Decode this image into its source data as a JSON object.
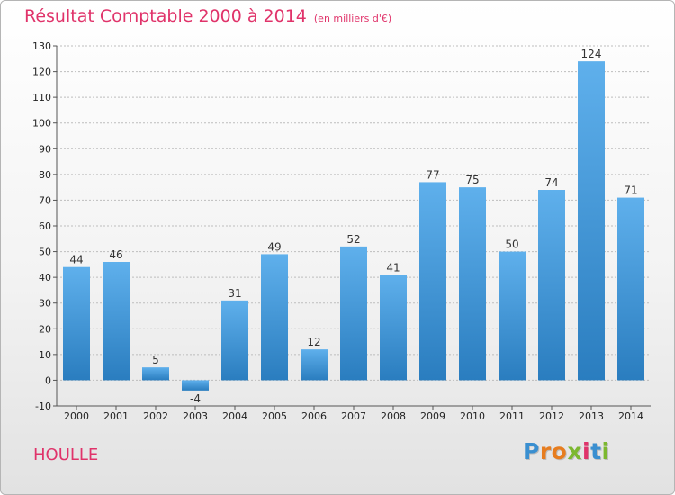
{
  "title": "Résultat Comptable 2000 à 2014",
  "subtitle": "(en milliers d'€)",
  "town": "HOULLE",
  "logo": {
    "letters": [
      "P",
      "r",
      "o",
      "x",
      "i",
      "t",
      "i"
    ],
    "colors": [
      "#3a8fd0",
      "#e77d1f",
      "#e77d1f",
      "#7cb82f",
      "#e0336a",
      "#3a8fd0",
      "#7cb82f"
    ]
  },
  "colors": {
    "title": "#e0336a",
    "bar_top": "#5fb0ec",
    "bar_bottom": "#2a7dbf"
  },
  "chart_data": {
    "type": "bar",
    "categories": [
      "2000",
      "2001",
      "2002",
      "2003",
      "2004",
      "2005",
      "2006",
      "2007",
      "2008",
      "2009",
      "2010",
      "2011",
      "2012",
      "2013",
      "2014"
    ],
    "values": [
      44,
      46,
      5,
      -4,
      31,
      49,
      12,
      52,
      41,
      77,
      75,
      50,
      74,
      124,
      71
    ],
    "data_labels": [
      "44",
      "46",
      "5",
      "-4",
      "31",
      "49",
      "12",
      "52",
      "41",
      "77",
      "75",
      "50",
      "74",
      "124",
      "71"
    ],
    "yticks": [
      -10,
      0,
      10,
      20,
      30,
      40,
      50,
      60,
      70,
      80,
      90,
      100,
      110,
      120,
      130
    ],
    "ylim": [
      -10,
      130
    ],
    "grid": true,
    "title": "Résultat Comptable 2000 à 2014",
    "xlabel": "",
    "ylabel": ""
  }
}
